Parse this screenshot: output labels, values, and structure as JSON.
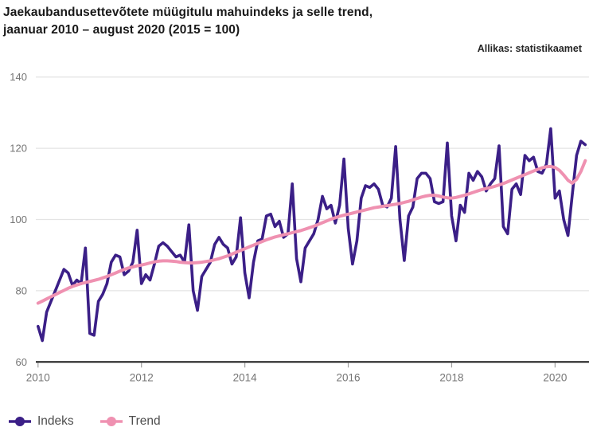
{
  "title": {
    "line1": "Jaekaubandusettevõtete müügitulu mahuindeks ja selle trend,",
    "line2": "jaanuar 2010 – august 2020 (2015 = 100)"
  },
  "source_label": "Allikas: statistikaamet",
  "colors": {
    "indeks": "#3b1f87",
    "trend": "#ef91b1",
    "grid": "#e4e4e4",
    "axis": "#1a1a1a",
    "tick": "#9e9e9e",
    "tick_label": "#757575"
  },
  "legend": {
    "items": [
      {
        "label": "Indeks",
        "color": "#3b1f87"
      },
      {
        "label": "Trend",
        "color": "#ef91b1"
      }
    ]
  },
  "chart_data": {
    "type": "line",
    "title": "Jaekaubandusettevõtete müügitulu mahuindeks ja selle trend, jaanuar 2010 – august 2020 (2015 = 100)",
    "x_start": "2010-01",
    "x_end": "2020-08",
    "months_per_point": 1,
    "ylim": [
      60,
      140
    ],
    "y_ticks": [
      140,
      120,
      100,
      80,
      60
    ],
    "x_ticks": [
      {
        "label": "2010",
        "month_index": 0
      },
      {
        "label": "2012",
        "month_index": 24
      },
      {
        "label": "2014",
        "month_index": 48
      },
      {
        "label": "2016",
        "month_index": 72
      },
      {
        "label": "2018",
        "month_index": 96
      },
      {
        "label": "2020",
        "month_index": 120
      }
    ],
    "grid": true,
    "legend_position": "bottom-left",
    "series": [
      {
        "name": "Indeks",
        "color": "#3b1f87",
        "values": [
          70,
          66,
          74,
          77,
          80,
          83,
          86,
          85,
          81.5,
          83,
          82,
          92,
          68,
          67.5,
          77,
          79,
          82,
          88,
          90,
          89.5,
          84.5,
          85.5,
          88,
          97,
          82,
          84.5,
          83,
          87.5,
          92.5,
          93.5,
          92.5,
          91,
          89.5,
          90,
          88,
          98.5,
          80,
          74.5,
          84,
          86,
          88,
          93,
          95,
          93,
          92,
          87.5,
          89.5,
          100.5,
          85,
          78,
          88,
          94,
          94.5,
          101,
          101.5,
          98,
          99.5,
          95,
          96,
          110,
          89,
          82.5,
          92,
          94,
          96,
          100,
          106.5,
          103,
          104,
          99,
          104,
          117,
          97.5,
          87.5,
          94,
          106,
          109.5,
          109,
          110,
          108.5,
          104,
          103.5,
          106,
          120.5,
          100,
          88.5,
          101,
          103.5,
          111.5,
          113,
          113,
          111.5,
          105,
          104.5,
          105,
          121.5,
          101,
          94,
          104,
          102,
          113,
          111,
          113.5,
          112,
          108,
          110,
          111.5,
          120.7,
          98,
          96,
          108.5,
          110,
          107,
          118,
          116.5,
          117.5,
          113.5,
          113,
          115.5,
          125.5,
          106,
          108,
          100,
          95.5,
          107,
          118,
          122,
          121
        ]
      },
      {
        "name": "Trend",
        "color": "#ef91b1",
        "values": [
          76.5,
          77.1,
          77.7,
          78.3,
          78.9,
          79.5,
          80.1,
          80.7,
          81.2,
          81.6,
          82.0,
          82.3,
          82.6,
          82.9,
          83.2,
          83.6,
          84.0,
          84.5,
          85.0,
          85.5,
          86.0,
          86.4,
          86.7,
          87.0,
          87.2,
          87.5,
          87.8,
          88.1,
          88.3,
          88.4,
          88.4,
          88.3,
          88.2,
          88.0,
          87.9,
          87.8,
          87.8,
          87.9,
          88.0,
          88.2,
          88.4,
          88.7,
          89.0,
          89.4,
          89.8,
          90.3,
          90.8,
          91.3,
          91.8,
          92.3,
          92.8,
          93.3,
          93.8,
          94.3,
          94.7,
          95.1,
          95.4,
          95.7,
          96.0,
          96.3,
          96.6,
          96.9,
          97.3,
          97.7,
          98.1,
          98.6,
          99.1,
          99.6,
          100.1,
          100.5,
          100.9,
          101.2,
          101.5,
          101.8,
          102.1,
          102.4,
          102.7,
          103.0,
          103.3,
          103.5,
          103.7,
          103.9,
          104.1,
          104.3,
          104.5,
          104.8,
          105.1,
          105.5,
          105.9,
          106.3,
          106.6,
          106.8,
          106.8,
          106.6,
          106.3,
          106.1,
          106.0,
          106.2,
          106.5,
          106.8,
          107.2,
          107.6,
          108.0,
          108.4,
          108.7,
          109.0,
          109.3,
          109.7,
          110.1,
          110.6,
          111.1,
          111.6,
          112.1,
          112.6,
          113.1,
          113.6,
          114.1,
          114.5,
          114.8,
          114.9,
          114.6,
          113.8,
          112.5,
          111.0,
          110.2,
          111.3,
          113.5,
          116.5
        ]
      }
    ]
  }
}
